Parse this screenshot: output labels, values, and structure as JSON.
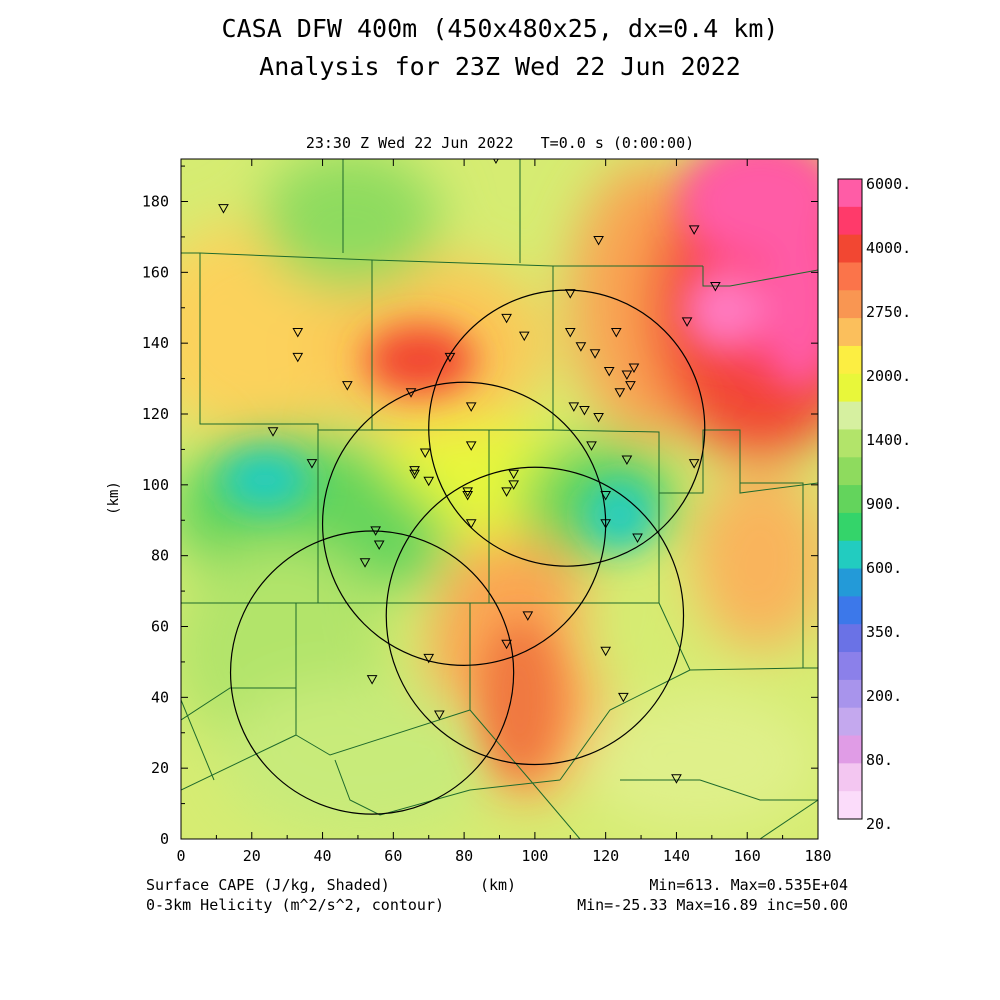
{
  "header": {
    "title_line1": "CASA DFW 400m (450x480x25, dx=0.4 km)",
    "title_line2": "Analysis for 23Z Wed 22 Jun 2022",
    "subtitle": "23:30 Z Wed 22 Jun 2022   T=0.0 s (0:00:00)"
  },
  "axes": {
    "x_ticks": [
      "0",
      "20",
      "40",
      "60",
      "80",
      "100",
      "120",
      "140",
      "160",
      "180"
    ],
    "y_ticks": [
      "0",
      "20",
      "40",
      "60",
      "80",
      "100",
      "120",
      "140",
      "160",
      "180"
    ],
    "x_label": "(km)",
    "y_label": "(km)"
  },
  "legend": {
    "labels": [
      "6000.",
      "4000.",
      "2750.",
      "2000.",
      "1400.",
      "900.",
      "600.",
      "350.",
      "200.",
      "80.",
      "20."
    ],
    "colors": [
      "#ff5ca6",
      "#ff3a6a",
      "#f24732",
      "#fb744a",
      "#f99652",
      "#fbbf5c",
      "#fcee42",
      "#e8f73a",
      "#d6f0a0",
      "#b2e46a",
      "#8edb5e",
      "#63d45c",
      "#34d46a",
      "#22ccc0",
      "#239ad8",
      "#3c78ea",
      "#6a72e6",
      "#8b80ea",
      "#a894ec",
      "#c4a8ee",
      "#e09ce6",
      "#f3c6f1",
      "#fbdcfa"
    ]
  },
  "footer": {
    "left_line1": "Surface CAPE (J/kg, Shaded)",
    "left_line2": "0-3km Helicity (m^2/s^2, contour)",
    "center_label": "(km)",
    "right_line1": "Min=613. Max=0.535E+04",
    "right_line2": "Min=-25.33 Max=16.89 inc=50.00"
  },
  "map": {
    "domain_km": {
      "x": [
        0,
        180
      ],
      "y": [
        0,
        192
      ]
    },
    "radar_rings_km": [
      {
        "cx": 109,
        "cy": 116,
        "r": 39
      },
      {
        "cx": 80,
        "cy": 89,
        "r": 40
      },
      {
        "cx": 100,
        "cy": 63,
        "r": 42
      },
      {
        "cx": 54,
        "cy": 47,
        "r": 40
      }
    ],
    "stations_km": [
      [
        12,
        178
      ],
      [
        89,
        192
      ],
      [
        118,
        169
      ],
      [
        145,
        172
      ],
      [
        151,
        156
      ],
      [
        33,
        143
      ],
      [
        33,
        136
      ],
      [
        47,
        128
      ],
      [
        65,
        126
      ],
      [
        76,
        136
      ],
      [
        110,
        154
      ],
      [
        92,
        147
      ],
      [
        97,
        142
      ],
      [
        110,
        143
      ],
      [
        113,
        139
      ],
      [
        117,
        137
      ],
      [
        123,
        143
      ],
      [
        143,
        146
      ],
      [
        121,
        132
      ],
      [
        126,
        131
      ],
      [
        128,
        133
      ],
      [
        127,
        128
      ],
      [
        124,
        126
      ],
      [
        111,
        122
      ],
      [
        114,
        121
      ],
      [
        118,
        119
      ],
      [
        82,
        122
      ],
      [
        26,
        115
      ],
      [
        37,
        106
      ],
      [
        69,
        109
      ],
      [
        82,
        111
      ],
      [
        116,
        111
      ],
      [
        126,
        107
      ],
      [
        145,
        106
      ],
      [
        66,
        104
      ],
      [
        66,
        103
      ],
      [
        70,
        101
      ],
      [
        94,
        103
      ],
      [
        94,
        100
      ],
      [
        92,
        98
      ],
      [
        81,
        98
      ],
      [
        81,
        97
      ],
      [
        120,
        97
      ],
      [
        82,
        89
      ],
      [
        120,
        89
      ],
      [
        129,
        85
      ],
      [
        55,
        87
      ],
      [
        56,
        83
      ],
      [
        52,
        78
      ],
      [
        98,
        63
      ],
      [
        92,
        55
      ],
      [
        120,
        53
      ],
      [
        70,
        51
      ],
      [
        54,
        45
      ],
      [
        125,
        40
      ],
      [
        73,
        35
      ],
      [
        140,
        17
      ]
    ]
  }
}
